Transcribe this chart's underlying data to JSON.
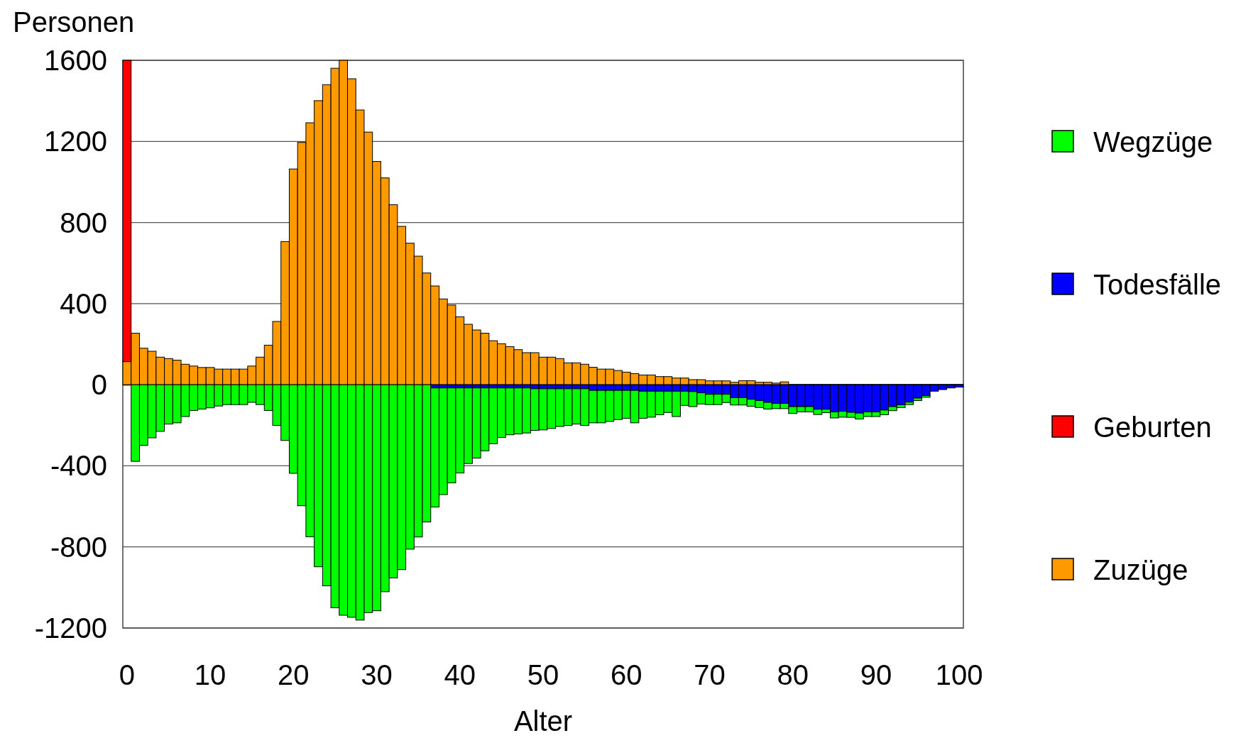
{
  "chart_data": {
    "type": "bar",
    "stacked": true,
    "xlabel": "Alter",
    "ylabel": "Personen",
    "categories": [
      "0",
      null,
      null,
      null,
      null,
      null,
      null,
      null,
      null,
      null,
      "10",
      null,
      null,
      null,
      null,
      null,
      null,
      null,
      null,
      null,
      "20",
      null,
      null,
      null,
      null,
      null,
      null,
      null,
      null,
      null,
      "30",
      null,
      null,
      null,
      null,
      null,
      null,
      null,
      null,
      null,
      "40",
      null,
      null,
      null,
      null,
      null,
      null,
      null,
      null,
      null,
      "50",
      null,
      null,
      null,
      null,
      null,
      null,
      null,
      null,
      null,
      "60",
      null,
      null,
      null,
      null,
      null,
      null,
      null,
      null,
      null,
      "70",
      null,
      null,
      null,
      null,
      null,
      null,
      null,
      null,
      null,
      "80",
      null,
      null,
      null,
      null,
      null,
      null,
      null,
      null,
      null,
      "90",
      null,
      null,
      null,
      null,
      null,
      null,
      null,
      null,
      null,
      "100"
    ],
    "series": [
      {
        "name": "Zuzüge",
        "color": "#ff9900",
        "values": [
          114,
          254,
          180,
          165,
          136,
          129,
          121,
          101,
          92,
          85,
          85,
          77,
          77,
          77,
          77,
          92,
          136,
          195,
          312,
          706,
          1064,
          1195,
          1292,
          1401,
          1480,
          1561,
          1600,
          1509,
          1355,
          1246,
          1101,
          1020,
          888,
          781,
          698,
          634,
          551,
          487,
          423,
          393,
          335,
          298,
          270,
          254,
          217,
          202,
          188,
          173,
          158,
          158,
          136,
          136,
          129,
          108,
          108,
          101,
          86,
          77,
          77,
          70,
          62,
          55,
          48,
          48,
          40,
          40,
          33,
          33,
          25,
          25,
          19,
          19,
          19,
          12,
          20,
          20,
          12,
          12,
          8,
          14,
          0,
          0,
          0,
          0,
          0,
          0,
          0,
          0,
          0,
          0,
          0,
          0,
          0,
          0,
          0,
          0,
          0,
          0,
          0,
          0,
          0
        ]
      },
      {
        "name": "Geburten",
        "color": "#ff0000",
        "values": [
          1486,
          null,
          null,
          null,
          null,
          null,
          null,
          null,
          null,
          null,
          null,
          null,
          null,
          null,
          null,
          null,
          null,
          null,
          null,
          null,
          null,
          null,
          null,
          null,
          null,
          null,
          null,
          null,
          null,
          null,
          null,
          null,
          null,
          null,
          null,
          null,
          null,
          null,
          null,
          null,
          null,
          null,
          null,
          null,
          null,
          null,
          null,
          null,
          null,
          null,
          null,
          null,
          null,
          null,
          null,
          null,
          null,
          null,
          null,
          null,
          null,
          null,
          null,
          null,
          null,
          null,
          null,
          null,
          null,
          null,
          null,
          null,
          null,
          null,
          null,
          null,
          null,
          null,
          null,
          null,
          null,
          null,
          null,
          null,
          null,
          null,
          null,
          null,
          null,
          null,
          null,
          null,
          null,
          null,
          null,
          null,
          null,
          null,
          null,
          null,
          null
        ]
      },
      {
        "name": "Todesfälle",
        "color": "#0000ff",
        "values": [
          0,
          0,
          0,
          0,
          0,
          0,
          0,
          0,
          0,
          0,
          0,
          0,
          0,
          0,
          0,
          0,
          0,
          0,
          0,
          0,
          0,
          0,
          0,
          0,
          0,
          0,
          0,
          0,
          0,
          0,
          0,
          0,
          0,
          0,
          0,
          0,
          0,
          -16,
          -16,
          -16,
          -16,
          -16,
          -16,
          -16,
          -16,
          -16,
          -16,
          -16,
          -16,
          -20,
          -20,
          -20,
          -20,
          -20,
          -20,
          -20,
          -28,
          -28,
          -28,
          -28,
          -28,
          -28,
          -32,
          -32,
          -32,
          -32,
          -32,
          -32,
          -34,
          -40,
          -47,
          -47,
          -47,
          -64,
          -64,
          -72,
          -78,
          -87,
          -92,
          -92,
          -108,
          -108,
          -108,
          -121,
          -121,
          -134,
          -131,
          -136,
          -140,
          -134,
          -134,
          -125,
          -108,
          -99,
          -86,
          -66,
          -54,
          -32,
          -24,
          -16,
          -12
        ]
      },
      {
        "name": "Wegzüge",
        "color": "#00ff00",
        "values": [
          0,
          -378,
          -299,
          -262,
          -230,
          -194,
          -188,
          -157,
          -127,
          -120,
          -114,
          -105,
          -98,
          -98,
          -98,
          -87,
          -98,
          -127,
          -201,
          -275,
          -437,
          -597,
          -750,
          -898,
          -992,
          -1100,
          -1137,
          -1147,
          -1161,
          -1124,
          -1115,
          -1021,
          -953,
          -912,
          -811,
          -751,
          -677,
          -587,
          -526,
          -468,
          -419,
          -373,
          -346,
          -310,
          -275,
          -244,
          -231,
          -227,
          -222,
          -205,
          -203,
          -196,
          -186,
          -181,
          -174,
          -181,
          -160,
          -160,
          -153,
          -144,
          -138,
          -160,
          -134,
          -128,
          -116,
          -105,
          -125,
          -70,
          -74,
          -55,
          -51,
          -51,
          -41,
          -36,
          -36,
          -35,
          -35,
          -33,
          -26,
          -26,
          -34,
          -26,
          -26,
          -26,
          -17,
          -30,
          -29,
          -25,
          -29,
          -23,
          -23,
          -23,
          -20,
          -14,
          -12,
          -12,
          -8,
          0,
          0,
          0,
          0
        ]
      }
    ],
    "ylim": [
      -1200,
      1600
    ],
    "yticks": [
      -1200,
      -800,
      -400,
      0,
      400,
      800,
      1200,
      1600
    ],
    "grid": "y",
    "legend": "right"
  }
}
